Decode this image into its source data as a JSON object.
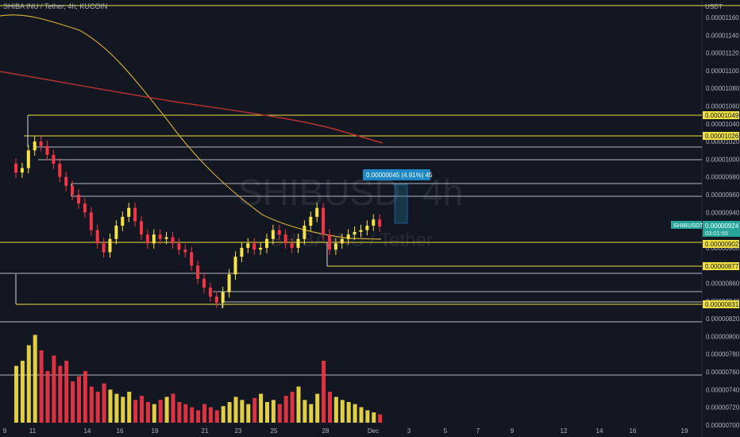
{
  "header": {
    "title": "SHIBA INU / Tether, 4h, KUCOIN"
  },
  "watermark": {
    "symbol": "SHIBUSD",
    "interval": "4h",
    "name": "SHIBA INU / Tether"
  },
  "measure_label": "0.00000045 (4.91%) 45",
  "price_tag": {
    "symbol": "SHIBUSDT",
    "price": "0.00000924",
    "countdown": "03:01:55"
  },
  "colors": {
    "background": "#131722",
    "up": "#f7e34a",
    "down": "#f23645",
    "level": "#f0e040",
    "white_level": "#d1d4dc",
    "ma_fast": "#c8a53a",
    "ma_slow": "#b5332e"
  },
  "chart_data": {
    "type": "candlestick",
    "currency": "USDT",
    "y_ticks": [
      "0.00001160",
      "0.00001140",
      "0.00001120",
      "0.00001100",
      "0.00001080",
      "0.00001060",
      "0.00001040",
      "0.00001020",
      "0.00001000",
      "0.00000980",
      "0.00000960",
      "0.00000940",
      "0.00000920",
      "0.00000900",
      "0.00000880",
      "0.00000860",
      "0.00000840",
      "0.00000820",
      "0.00000800",
      "0.00000780",
      "0.00000760",
      "0.00000740",
      "0.00000720",
      "0.00000700"
    ],
    "x_ticks": [
      "9",
      "11",
      "14",
      "16",
      "19",
      "21",
      "23",
      "25",
      "28",
      "Dec",
      "3",
      "5",
      "7",
      "9",
      "12",
      "14",
      "16",
      "19"
    ],
    "level_labels": [
      "0.00001049",
      "0.00001026",
      "0.00000902",
      "0.00000877",
      "0.00000831"
    ],
    "ohlc_closes": [
      9.85e-06,
      9.9e-06,
      1.01e-05,
      1.02e-05,
      1.015e-05,
      1.005e-05,
      9.95e-06,
      9.8e-06,
      9.7e-06,
      9.6e-06,
      9.5e-06,
      9.4e-06,
      9.2e-06,
      9.05e-06,
      8.95e-06,
      9.1e-06,
      9.25e-06,
      9.35e-06,
      9.45e-06,
      9.3e-06,
      9.15e-06,
      9.05e-06,
      9.15e-06,
      9.1e-06,
      9.12e-06,
      9.05e-06,
      8.98e-06,
      8.95e-06,
      8.8e-06,
      8.65e-06,
      8.55e-06,
      8.45e-06,
      8.38e-06,
      8.5e-06,
      8.7e-06,
      8.9e-06,
      9e-06,
      9.05e-06,
      8.98e-06,
      9e-06,
      9.1e-06,
      9.2e-06,
      9.15e-06,
      9.05e-06,
      9e-06,
      9.1e-06,
      9.25e-06,
      9.35e-06,
      9.45e-06,
      9.15e-06,
      8.98e-06,
      9.05e-06,
      9.1e-06,
      9.15e-06,
      9.18e-06,
      9.2e-06,
      9.25e-06,
      9.32e-06,
      9.24e-06
    ],
    "volume_relative": [
      0.55,
      0.6,
      0.75,
      0.85,
      0.7,
      0.5,
      0.65,
      0.55,
      0.6,
      0.4,
      0.45,
      0.5,
      0.35,
      0.3,
      0.38,
      0.32,
      0.28,
      0.25,
      0.3,
      0.22,
      0.26,
      0.2,
      0.18,
      0.22,
      0.25,
      0.28,
      0.2,
      0.18,
      0.15,
      0.12,
      0.18,
      0.15,
      0.12,
      0.16,
      0.2,
      0.25,
      0.22,
      0.18,
      0.24,
      0.28,
      0.2,
      0.22,
      0.18,
      0.26,
      0.3,
      0.35,
      0.22,
      0.18,
      0.28,
      0.6,
      0.3,
      0.25,
      0.22,
      0.2,
      0.18,
      0.15,
      0.12,
      0.1,
      0.08
    ]
  }
}
